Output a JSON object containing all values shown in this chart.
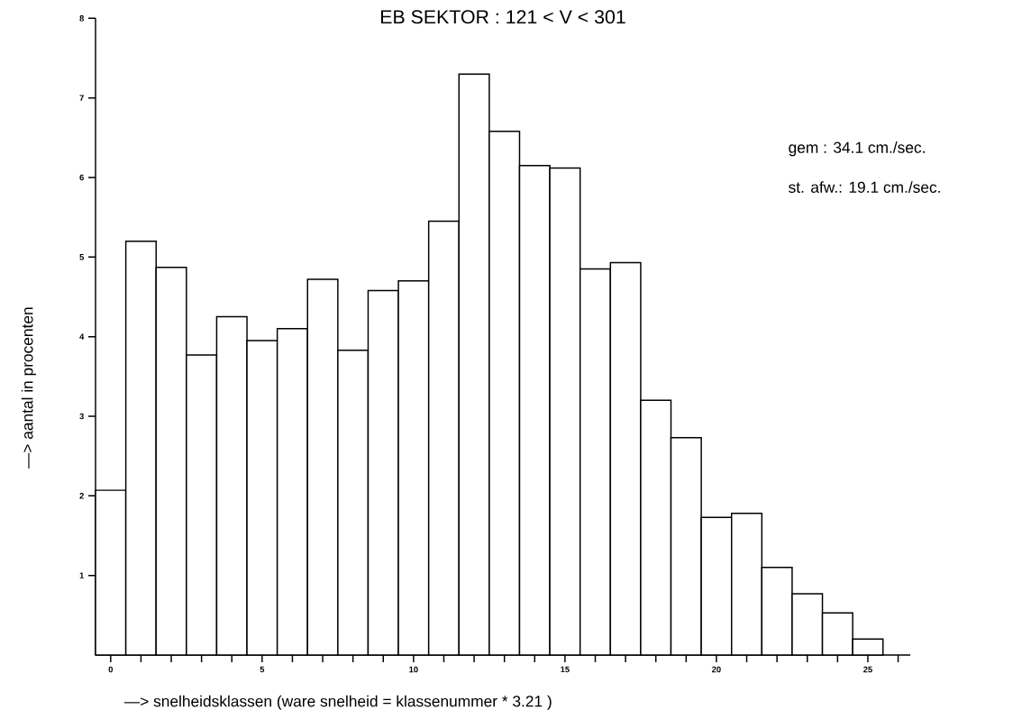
{
  "chart_data": {
    "type": "histogram",
    "title": "EB SEKTOR : 121 < V < 301",
    "xlabel": "—> snelheidsklassen (ware snelheid = klassenummer * 3.21 )",
    "ylabel": "—> aantal in procenten",
    "annotations": [
      "gem : 34.1 cm./sec.",
      "st. afw.: 19.1 cm./sec."
    ],
    "bins": [
      -0.5,
      0.5,
      1.5,
      2.5,
      3.5,
      4.5,
      5.5,
      6.5,
      7.5,
      8.5,
      9.5,
      10.5,
      11.5,
      12.5,
      13.5,
      14.5,
      15.5,
      16.5,
      17.5,
      18.5,
      19.5,
      20.5,
      21.5,
      22.5,
      23.5,
      24.5,
      25.5
    ],
    "values": [
      2.07,
      5.2,
      4.87,
      3.77,
      4.25,
      3.95,
      4.1,
      4.72,
      3.83,
      4.58,
      4.7,
      5.45,
      7.3,
      6.58,
      6.15,
      6.12,
      4.85,
      4.93,
      3.2,
      2.73,
      1.73,
      1.78,
      1.1,
      0.77,
      0.53,
      0.2
    ],
    "color": "#000000",
    "xlim": [
      -0.5,
      26.4
    ],
    "ylim": [
      0,
      8
    ],
    "xticks": [
      0,
      {
        "value": 1,
        "label": null
      },
      {
        "value": 2,
        "label": null
      },
      {
        "value": 3,
        "label": null
      },
      {
        "value": 4,
        "label": null
      },
      5,
      {
        "value": 6,
        "label": null
      },
      {
        "value": 7,
        "label": null
      },
      {
        "value": 8,
        "label": null
      },
      {
        "value": 9,
        "label": null
      },
      10,
      {
        "value": 11,
        "label": null
      },
      {
        "value": 12,
        "label": null
      },
      {
        "value": 13,
        "label": null
      },
      {
        "value": 14,
        "label": null
      },
      15,
      {
        "value": 16,
        "label": null
      },
      {
        "value": 17,
        "label": null
      },
      {
        "value": 18,
        "label": null
      },
      {
        "value": 19,
        "label": null
      },
      20,
      {
        "value": 21,
        "label": null
      },
      {
        "value": 22,
        "label": null
      },
      {
        "value": 23,
        "label": null
      },
      {
        "value": 24,
        "label": null
      },
      25,
      {
        "value": 26,
        "label": null
      }
    ],
    "yticks": [
      1,
      2,
      3,
      4,
      5,
      6,
      7,
      8
    ],
    "grid": false
  }
}
